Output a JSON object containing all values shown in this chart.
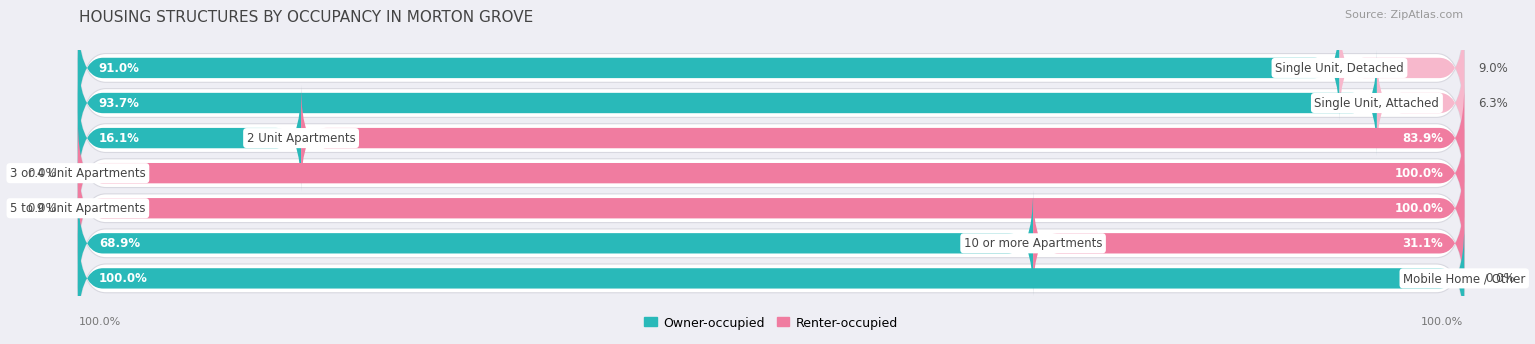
{
  "title": "HOUSING STRUCTURES BY OCCUPANCY IN MORTON GROVE",
  "source": "Source: ZipAtlas.com",
  "categories": [
    "Single Unit, Detached",
    "Single Unit, Attached",
    "2 Unit Apartments",
    "3 or 4 Unit Apartments",
    "5 to 9 Unit Apartments",
    "10 or more Apartments",
    "Mobile Home / Other"
  ],
  "owner_pct": [
    91.0,
    93.7,
    16.1,
    0.0,
    0.0,
    68.9,
    100.0
  ],
  "renter_pct": [
    9.0,
    6.3,
    83.9,
    100.0,
    100.0,
    31.1,
    0.0
  ],
  "owner_color": "#29b9b9",
  "renter_color": "#f07ca0",
  "owner_color_light": "#a8dede",
  "renter_color_light": "#f7b8cc",
  "row_bg_color": "#ffffff",
  "row_border_color": "#d8d8e0",
  "fig_bg_color": "#eeeef4",
  "title_color": "#444444",
  "source_color": "#999999",
  "label_dark_color": "#555555",
  "title_fontsize": 11,
  "source_fontsize": 8,
  "bar_label_fontsize": 8.5,
  "cat_label_fontsize": 8.5,
  "axis_label_fontsize": 8,
  "legend_fontsize": 9,
  "axis_label_left": "100.0%",
  "axis_label_right": "100.0%"
}
